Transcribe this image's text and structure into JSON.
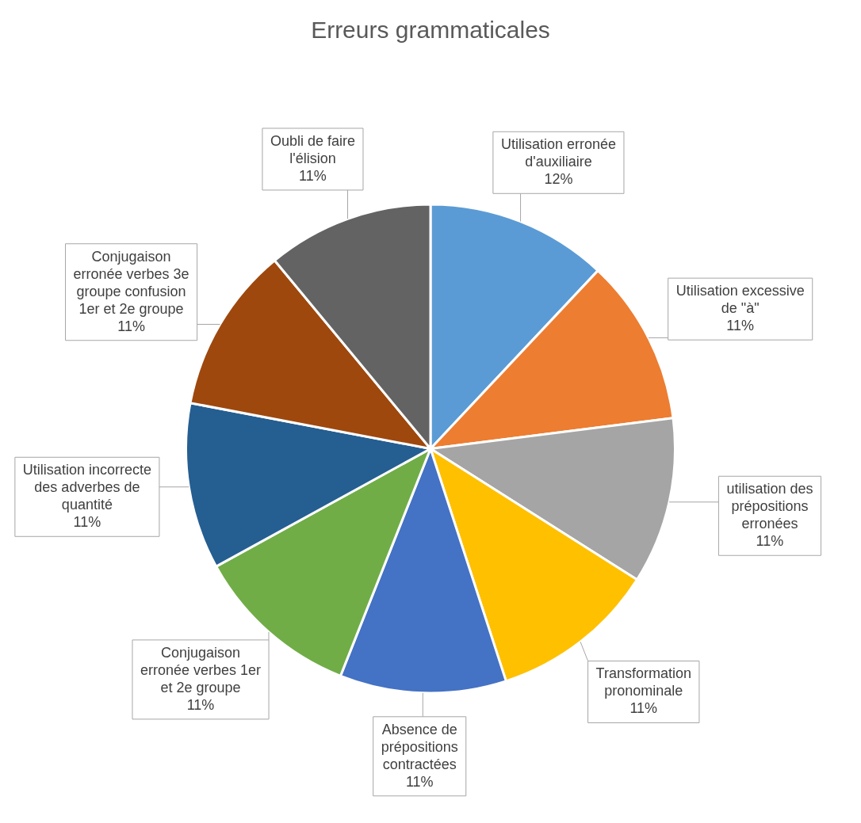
{
  "chart_data": {
    "type": "pie",
    "title": "Erreurs grammaticales",
    "categories": [
      "Utilisation erronée d'auxiliaire",
      "Utilisation excessive de \"à\"",
      "utilisation des prépositions erronées",
      "Transformation pronominale",
      "Absence de prépositions contractées",
      "Conjugaison erronée verbes 1er et 2e groupe",
      "Utilisation incorrecte des adverbes de quantité",
      "Conjugaison erronée verbes 3e groupe confusion 1er et 2e groupe",
      "Oubli de faire l'élision"
    ],
    "values": [
      12,
      11,
      11,
      11,
      11,
      11,
      11,
      11,
      11
    ],
    "value_labels": [
      "12%",
      "11%",
      "11%",
      "11%",
      "11%",
      "11%",
      "11%",
      "11%",
      "11%"
    ],
    "colors": [
      "#5b9bd5",
      "#ed7d31",
      "#a5a5a5",
      "#ffc000",
      "#4472c4",
      "#70ad47",
      "#255e91",
      "#9e480e",
      "#636363"
    ],
    "legend": false
  }
}
